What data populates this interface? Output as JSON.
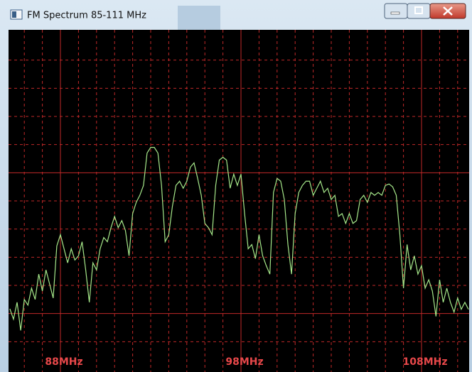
{
  "window": {
    "title": "FM Spectrum 85-111 MHz"
  },
  "chart_data": {
    "type": "line",
    "color": "#a6e88a",
    "grid_color": "#c02828",
    "label_color": "#e8484a",
    "xlim": [
      85,
      111
    ],
    "ylim": [
      0,
      12
    ],
    "xgrid": [
      86,
      87,
      88,
      89,
      90,
      91,
      92,
      93,
      94,
      95,
      96,
      97,
      98,
      99,
      100,
      101,
      102,
      103,
      104,
      105,
      106,
      107,
      108,
      109,
      110
    ],
    "xticks": [
      {
        "value": 88,
        "label": "88MHz"
      },
      {
        "value": 98,
        "label": "98MHz"
      },
      {
        "value": 108,
        "label": "108MHz"
      }
    ],
    "ygrid": [
      1,
      2,
      3,
      4,
      5,
      6,
      7,
      8,
      9,
      10,
      11
    ],
    "ygrid_major": [
      2,
      7
    ],
    "x": [
      85.2,
      85.4,
      85.6,
      85.8,
      86.0,
      86.2,
      86.4,
      86.6,
      86.8,
      87.0,
      87.2,
      87.4,
      87.6,
      87.8,
      88.0,
      88.2,
      88.4,
      88.6,
      88.8,
      89.0,
      89.2,
      89.4,
      89.6,
      89.8,
      90.0,
      90.2,
      90.4,
      90.6,
      90.8,
      91.0,
      91.2,
      91.4,
      91.6,
      91.8,
      92.0,
      92.2,
      92.4,
      92.6,
      92.8,
      93.0,
      93.2,
      93.4,
      93.6,
      93.8,
      94.0,
      94.2,
      94.4,
      94.6,
      94.8,
      95.0,
      95.2,
      95.4,
      95.6,
      95.8,
      96.0,
      96.2,
      96.4,
      96.6,
      96.8,
      97.0,
      97.2,
      97.4,
      97.6,
      97.8,
      98.0,
      98.2,
      98.4,
      98.6,
      98.8,
      99.0,
      99.2,
      99.4,
      99.6,
      99.8,
      100.0,
      100.2,
      100.4,
      100.6,
      100.8,
      101.0,
      101.2,
      101.4,
      101.6,
      101.8,
      102.0,
      102.2,
      102.4,
      102.6,
      102.8,
      103.0,
      103.2,
      103.4,
      103.6,
      103.8,
      104.0,
      104.2,
      104.4,
      104.6,
      104.8,
      105.0,
      105.2,
      105.4,
      105.6,
      105.8,
      106.0,
      106.2,
      106.4,
      106.6,
      106.8,
      107.0,
      107.2,
      107.4,
      107.6,
      107.8,
      108.0,
      108.2,
      108.4,
      108.6,
      108.8,
      109.0,
      109.2,
      109.4,
      109.6,
      109.8,
      110.0,
      110.2,
      110.4,
      110.6
    ],
    "values": [
      2.17,
      1.8,
      2.4,
      1.4,
      2.5,
      2.3,
      2.9,
      2.5,
      3.4,
      2.8,
      3.55,
      3.05,
      2.55,
      4.4,
      4.8,
      4.3,
      3.8,
      4.3,
      3.9,
      4.05,
      4.55,
      3.55,
      2.4,
      3.8,
      3.55,
      4.3,
      4.7,
      4.55,
      5.05,
      5.45,
      5.05,
      5.3,
      4.95,
      4.05,
      5.55,
      5.95,
      6.2,
      6.55,
      7.7,
      7.9,
      7.9,
      7.7,
      6.55,
      4.55,
      4.8,
      5.8,
      6.55,
      6.7,
      6.45,
      6.7,
      7.2,
      7.35,
      6.8,
      6.2,
      5.2,
      5.05,
      4.8,
      6.55,
      7.45,
      7.55,
      7.45,
      6.45,
      6.95,
      6.55,
      6.95,
      5.55,
      4.3,
      4.45,
      3.95,
      4.8,
      4.05,
      3.7,
      3.4,
      6.3,
      6.8,
      6.7,
      6.05,
      4.45,
      3.4,
      5.55,
      6.3,
      6.55,
      6.7,
      6.7,
      6.2,
      6.45,
      6.7,
      6.3,
      6.45,
      6.05,
      6.2,
      5.45,
      5.55,
      5.2,
      5.55,
      5.2,
      5.3,
      6.05,
      6.2,
      5.95,
      6.3,
      6.2,
      6.3,
      6.2,
      6.55,
      6.6,
      6.5,
      6.2,
      4.8,
      2.9,
      4.45,
      3.55,
      4.05,
      3.4,
      3.7,
      2.9,
      3.2,
      2.8,
      1.9,
      3.2,
      2.4,
      2.9,
      2.4,
      2.05,
      2.55,
      2.15,
      2.4,
      2.15
    ]
  }
}
